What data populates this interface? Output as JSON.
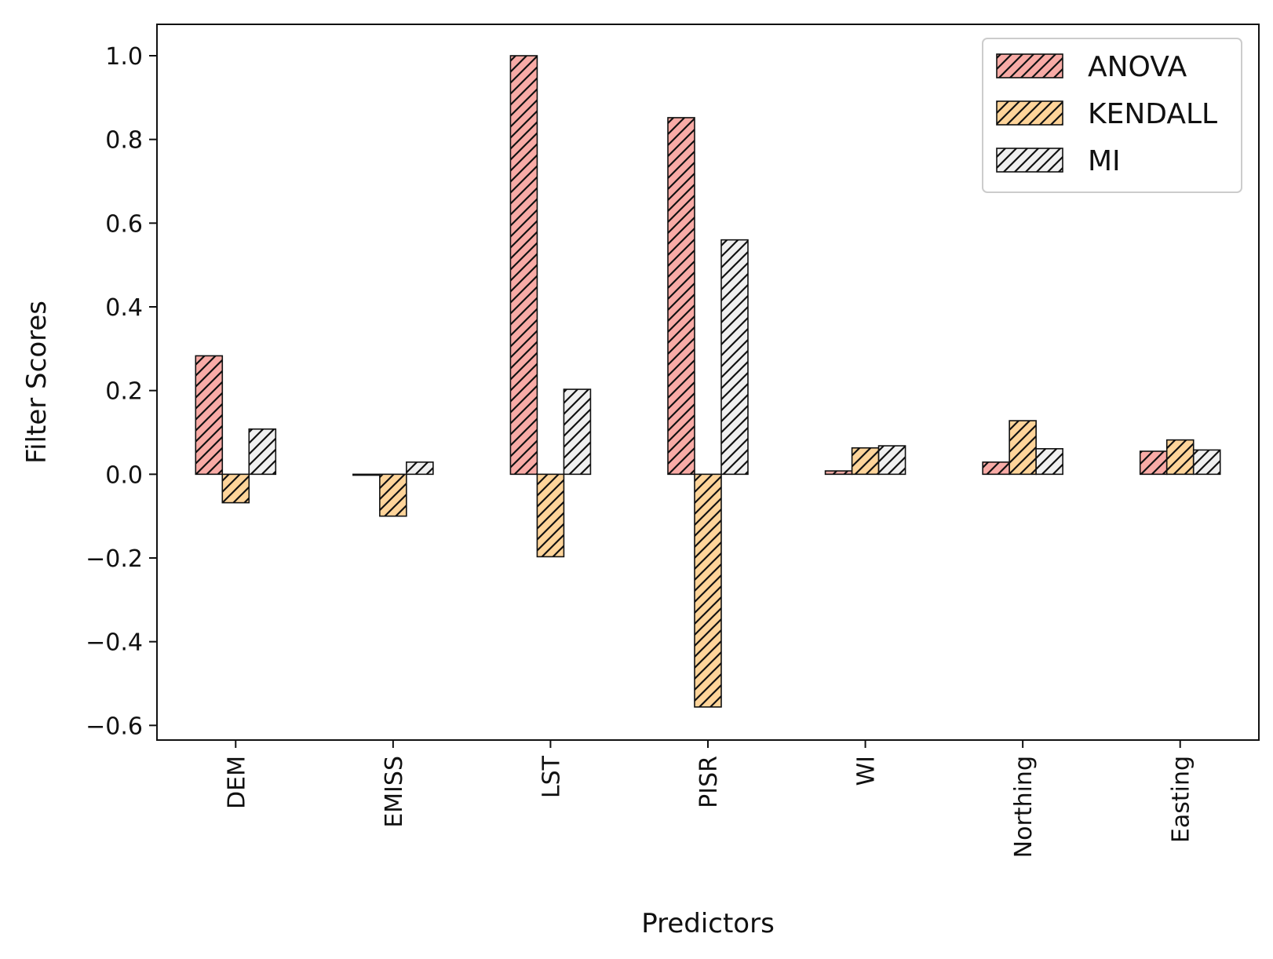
{
  "chart_data": {
    "type": "bar",
    "title": "",
    "xlabel": "Predictors",
    "ylabel": "Filter Scores",
    "categories": [
      "DEM",
      "EMISS",
      "LST",
      "PISR",
      "WI",
      "Northing",
      "Easting"
    ],
    "series": [
      {
        "name": "ANOVA",
        "color": "#f8aba6",
        "values": [
          0.283,
          0.0,
          1.0,
          0.852,
          0.008,
          0.029,
          0.055
        ]
      },
      {
        "name": "KENDALL",
        "color": "#fed49a",
        "values": [
          -0.068,
          -0.1,
          -0.197,
          -0.556,
          0.063,
          0.128,
          0.082
        ]
      },
      {
        "name": "MI",
        "color": "#f0f0f0",
        "values": [
          0.108,
          0.029,
          0.203,
          0.56,
          0.068,
          0.061,
          0.058
        ]
      }
    ],
    "yticks": [
      "−0.6",
      "−0.4",
      "−0.2",
      "0.0",
      "0.2",
      "0.4",
      "0.6",
      "0.8",
      "1.0"
    ],
    "ytick_values": [
      -0.6,
      -0.4,
      -0.2,
      0.0,
      0.2,
      0.4,
      0.6,
      0.8,
      1.0
    ],
    "ylim": [
      -0.635,
      1.075
    ],
    "grid": false,
    "legend_position": "top-right",
    "hatch": "diagonal"
  }
}
